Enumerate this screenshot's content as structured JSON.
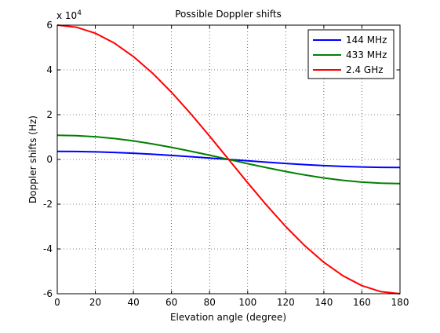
{
  "chart_data": {
    "type": "line",
    "title": "Possible Doppler shifts",
    "xlabel": "Elevation angle (degree)",
    "ylabel": "Doppler shifts (Hz)",
    "y_multiplier_label": "x 10",
    "y_multiplier_exponent": "4",
    "xlim": [
      0,
      180
    ],
    "ylim": [
      -60000,
      60000
    ],
    "x_ticks": [
      0,
      20,
      40,
      60,
      80,
      100,
      120,
      140,
      160,
      180
    ],
    "x_tick_labels": [
      "0",
      "20",
      "40",
      "60",
      "80",
      "100",
      "120",
      "140",
      "160",
      "180"
    ],
    "y_ticks": [
      -60000,
      -40000,
      -20000,
      0,
      20000,
      40000,
      60000
    ],
    "y_tick_labels": [
      "-6",
      "-4",
      "-2",
      "0",
      "2",
      "4",
      "6"
    ],
    "grid": true,
    "legend_position": "top-right",
    "series": [
      {
        "name": "144 MHz",
        "color": "#0000ff",
        "x": [
          0,
          10,
          20,
          30,
          40,
          50,
          60,
          70,
          80,
          90,
          100,
          110,
          120,
          130,
          140,
          150,
          160,
          170,
          180
        ],
        "values": [
          3600,
          3545,
          3383,
          3118,
          2758,
          2314,
          1800,
          1231,
          625,
          0,
          -625,
          -1231,
          -1800,
          -2314,
          -2758,
          -3118,
          -3383,
          -3545,
          -3600
        ]
      },
      {
        "name": "433 MHz",
        "color": "#008000",
        "x": [
          0,
          10,
          20,
          30,
          40,
          50,
          60,
          70,
          80,
          90,
          100,
          110,
          120,
          130,
          140,
          150,
          160,
          170,
          180
        ],
        "values": [
          10800,
          10636,
          10149,
          9353,
          8273,
          6942,
          5400,
          3694,
          1875,
          0,
          -1875,
          -3694,
          -5400,
          -6942,
          -8273,
          -9353,
          -10149,
          -10636,
          -10800
        ]
      },
      {
        "name": "2.4 GHz",
        "color": "#ff0000",
        "x": [
          0,
          10,
          20,
          30,
          40,
          50,
          60,
          70,
          80,
          90,
          100,
          110,
          120,
          130,
          140,
          150,
          160,
          170,
          180
        ],
        "values": [
          60000,
          59088,
          56382,
          51962,
          45963,
          38567,
          30000,
          20521,
          10419,
          0,
          -10419,
          -20521,
          -30000,
          -38567,
          -45963,
          -51962,
          -56382,
          -59088,
          -60000
        ]
      }
    ]
  }
}
